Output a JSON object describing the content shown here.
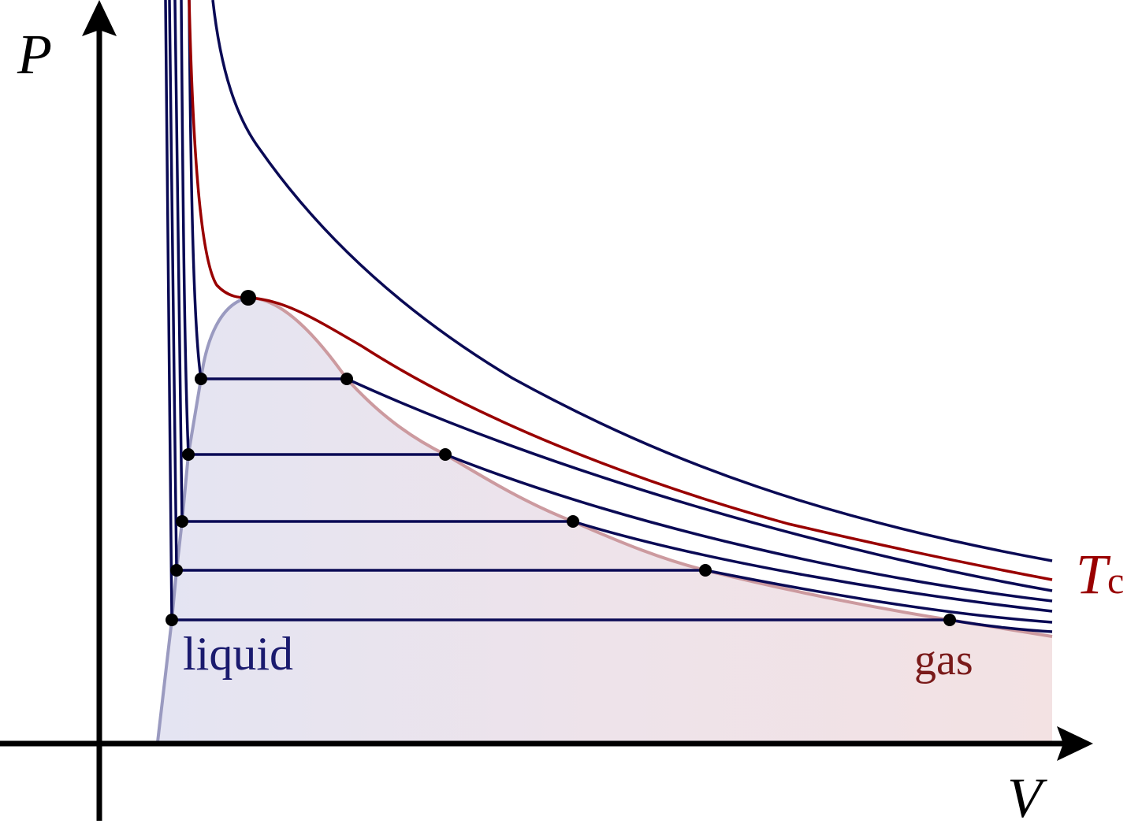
{
  "axes": {
    "y_label": "P",
    "x_label": "V"
  },
  "critical_isotherm": {
    "label_main": "T",
    "label_sub": "c",
    "color": "#990000"
  },
  "regions": {
    "liquid": "liquid",
    "gas": "gas",
    "liquid_color": "#1a1a6e",
    "gas_color": "#7a1a1a"
  },
  "colors": {
    "isotherm": "#0a0a55",
    "dome_left": "#9a9ac0",
    "dome_right": "#cc9a9f",
    "fill_left": "#e4e4f2",
    "fill_right": "#f3e2e3"
  }
}
